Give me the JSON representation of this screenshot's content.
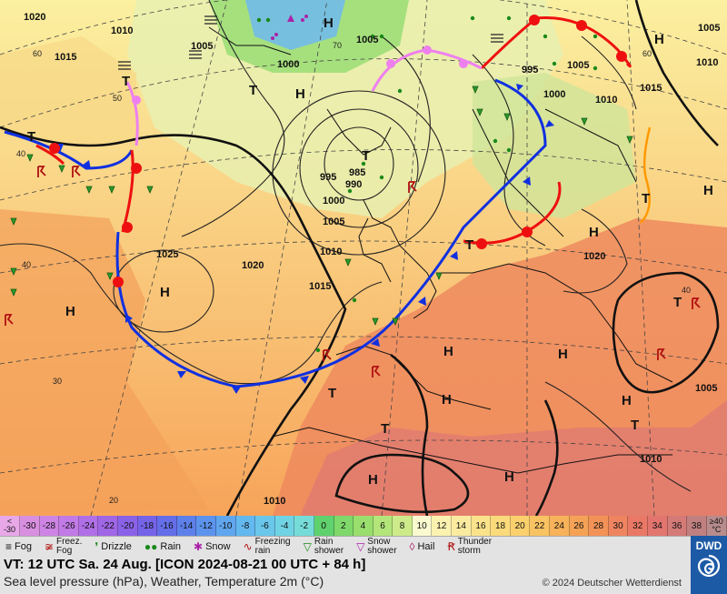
{
  "map": {
    "isobar_labels": [
      {
        "text": "1020"
      },
      {
        "text": "1010"
      },
      {
        "text": "1015"
      },
      {
        "text": "1005"
      },
      {
        "text": "1000"
      },
      {
        "text": "1005"
      },
      {
        "text": "995"
      },
      {
        "text": "1000"
      },
      {
        "text": "1010"
      },
      {
        "text": "1005"
      },
      {
        "text": "1015"
      },
      {
        "text": "1005"
      },
      {
        "text": "1010"
      },
      {
        "text": "995"
      },
      {
        "text": "985"
      },
      {
        "text": "990"
      },
      {
        "text": "1000"
      },
      {
        "text": "1005"
      },
      {
        "text": "1010"
      },
      {
        "text": "1015"
      },
      {
        "text": "1025"
      },
      {
        "text": "1020"
      },
      {
        "text": "1020"
      },
      {
        "text": "1005"
      },
      {
        "text": "1010"
      },
      {
        "text": "1010"
      }
    ],
    "pressure_centers": [
      {
        "text": "H"
      },
      {
        "text": "H"
      },
      {
        "text": "T"
      },
      {
        "text": "T"
      },
      {
        "text": "H"
      },
      {
        "text": "T"
      },
      {
        "text": "T"
      },
      {
        "text": "T"
      },
      {
        "text": "H"
      },
      {
        "text": "H"
      },
      {
        "text": "H"
      },
      {
        "text": "H"
      },
      {
        "text": "H"
      },
      {
        "text": "T"
      },
      {
        "text": "T"
      },
      {
        "text": "H"
      },
      {
        "text": "T"
      },
      {
        "text": "H"
      },
      {
        "text": "H"
      },
      {
        "text": "H"
      },
      {
        "text": "H"
      },
      {
        "text": "T"
      },
      {
        "text": "T"
      }
    ],
    "grid_labels": [
      {
        "text": "60"
      },
      {
        "text": "50"
      },
      {
        "text": "40"
      },
      {
        "text": "40"
      },
      {
        "text": "30"
      },
      {
        "text": "20"
      },
      {
        "text": "70"
      },
      {
        "text": "60"
      },
      {
        "text": "40"
      }
    ]
  },
  "colorbar": {
    "first": [
      "<",
      "-30"
    ],
    "last": [
      "≥40",
      "°C"
    ],
    "cells": [
      {
        "label": "-30",
        "color": "#d98fe0"
      },
      {
        "label": "-28",
        "color": "#cd84e4"
      },
      {
        "label": "-26",
        "color": "#c17ae6"
      },
      {
        "label": "-24",
        "color": "#b06fe6"
      },
      {
        "label": "-22",
        "color": "#9f66e6"
      },
      {
        "label": "-20",
        "color": "#8a62e8"
      },
      {
        "label": "-18",
        "color": "#7563e8"
      },
      {
        "label": "-16",
        "color": "#646ee8"
      },
      {
        "label": "-14",
        "color": "#5d80ea"
      },
      {
        "label": "-12",
        "color": "#5c93ec"
      },
      {
        "label": "-10",
        "color": "#60a6ee"
      },
      {
        "label": "-8",
        "color": "#63b8ef"
      },
      {
        "label": "-6",
        "color": "#6ac6ea"
      },
      {
        "label": "-4",
        "color": "#70d3e4"
      },
      {
        "label": "-2",
        "color": "#76dcd8"
      },
      {
        "label": "0",
        "color": "#5fd16d"
      },
      {
        "label": "2",
        "color": "#7fd86a"
      },
      {
        "label": "4",
        "color": "#9ade6e"
      },
      {
        "label": "6",
        "color": "#b4e57a"
      },
      {
        "label": "8",
        "color": "#cdeb8a"
      },
      {
        "label": "10",
        "color": "#fafad0"
      },
      {
        "label": "12",
        "color": "#fbf2b0"
      },
      {
        "label": "14",
        "color": "#fbeba0"
      },
      {
        "label": "16",
        "color": "#fbe38c"
      },
      {
        "label": "18",
        "color": "#fbda7c"
      },
      {
        "label": "20",
        "color": "#fbd06d"
      },
      {
        "label": "22",
        "color": "#f9c262"
      },
      {
        "label": "24",
        "color": "#f7b25a"
      },
      {
        "label": "26",
        "color": "#f5a256"
      },
      {
        "label": "28",
        "color": "#f39257"
      },
      {
        "label": "30",
        "color": "#ef8460"
      },
      {
        "label": "32",
        "color": "#ea7866"
      },
      {
        "label": "34",
        "color": "#e3756f"
      },
      {
        "label": "36",
        "color": "#d47a77"
      },
      {
        "label": "38",
        "color": "#c08080"
      }
    ]
  },
  "legend": {
    "fog": "Fog",
    "freezing_fog": [
      "Freez.",
      "Fog"
    ],
    "drizzle": "Drizzle",
    "rain": "Rain",
    "snow": "Snow",
    "freezing_rain": [
      "Freezing",
      "rain"
    ],
    "rain_shower": [
      "Rain",
      "shower"
    ],
    "snow_shower": [
      "Snow",
      "shower"
    ],
    "hail": "Hail",
    "thunderstorm": [
      "Thunder",
      "storm"
    ]
  },
  "info": {
    "valid_time": "VT: 12 UTC Sa.  24 Aug. [ICON 2024-08-21  00 UTC + 84 h]",
    "description": "Sea level pressure (hPa), Weather, Temperature 2m (°C)",
    "copyright": "© 2024 Deutscher Wetterdienst",
    "logo": "DWD"
  },
  "colors": {
    "cold_front": "#1030e0",
    "warm_front": "#ee1010",
    "occluded_front": "#ee80ee",
    "trough": "#ff9900",
    "isobar": "#222222",
    "background": "#e3e3e3",
    "logo_bg": "#1c5aa6"
  }
}
